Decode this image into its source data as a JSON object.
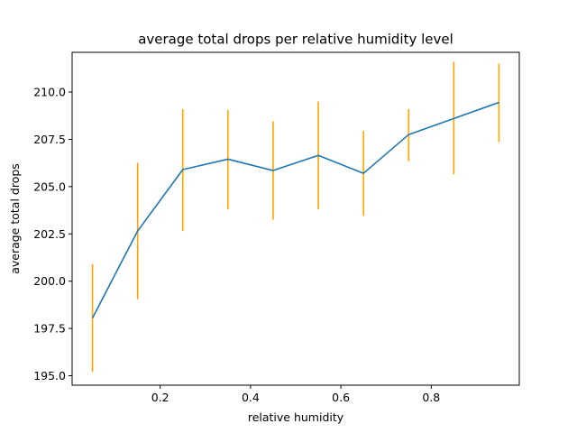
{
  "chart_data": {
    "type": "line",
    "title": "average total drops per relative humidity level",
    "xlabel": "relative humidity",
    "ylabel": "average total drops",
    "xlim": [
      0.005,
      0.995
    ],
    "ylim": [
      194.5,
      212.1
    ],
    "xticks": [
      0.2,
      0.4,
      0.6,
      0.8
    ],
    "xtick_labels": [
      "0.2",
      "0.4",
      "0.6",
      "0.8"
    ],
    "yticks": [
      195.0,
      197.5,
      200.0,
      202.5,
      205.0,
      207.5,
      210.0
    ],
    "ytick_labels": [
      "195.0",
      "197.5",
      "200.0",
      "202.5",
      "205.0",
      "207.5",
      "210.0"
    ],
    "grid": false,
    "series": [
      {
        "color": "#1f77b4",
        "error_color": "#ffa500",
        "x": [
          0.05,
          0.15,
          0.25,
          0.35,
          0.45,
          0.55,
          0.65,
          0.75,
          0.85,
          0.95
        ],
        "y": [
          198.05,
          202.65,
          205.9,
          206.45,
          205.85,
          206.65,
          205.7,
          207.75,
          208.6,
          209.45
        ],
        "y_low": [
          195.2,
          199.05,
          202.65,
          203.8,
          203.25,
          203.8,
          203.45,
          206.35,
          205.65,
          207.35
        ],
        "y_high": [
          200.9,
          206.25,
          209.1,
          209.05,
          208.45,
          209.5,
          207.95,
          209.1,
          211.6,
          211.5
        ]
      }
    ]
  }
}
